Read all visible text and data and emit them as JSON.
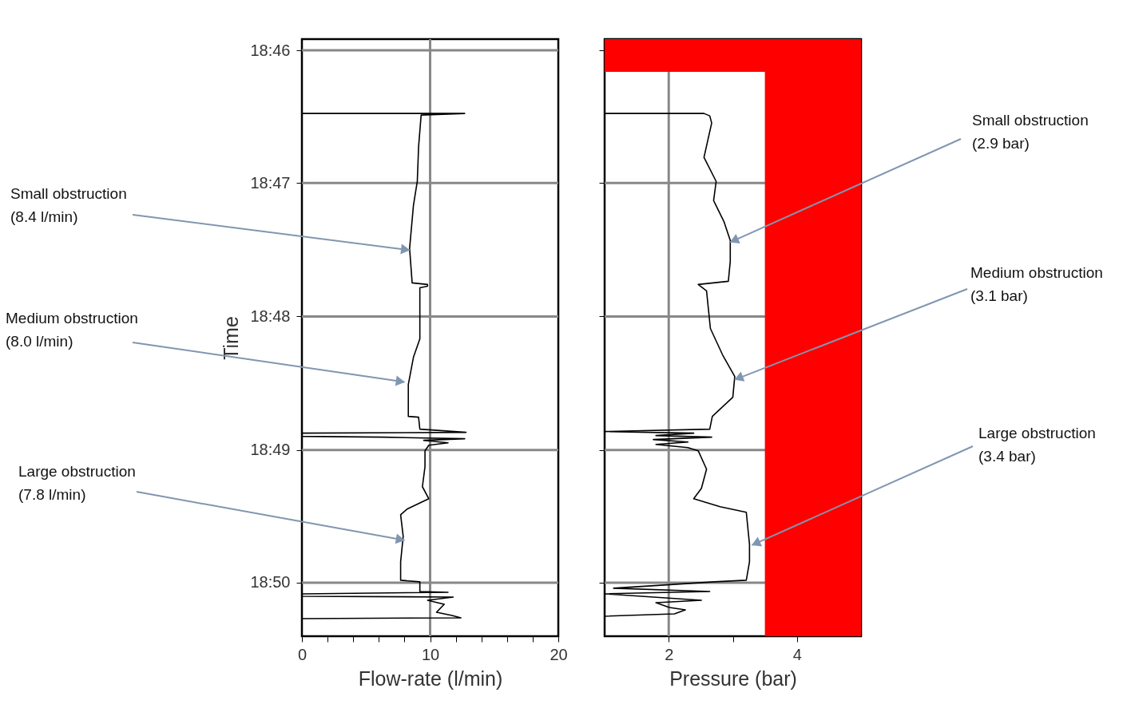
{
  "chart_data": [
    {
      "type": "line",
      "orientation": "horizontal",
      "xlabel": "Flow-rate (l/min)",
      "ylabel": "Time",
      "xlim": [
        0,
        20
      ],
      "xticks": [
        0,
        {
          "value": 2,
          "label": null
        },
        {
          "value": 4,
          "label": null
        },
        {
          "value": 6,
          "label": null
        },
        {
          "value": 8,
          "label": null
        },
        10,
        {
          "value": 12,
          "label": null
        },
        {
          "value": 14,
          "label": null
        },
        {
          "value": 16,
          "label": null
        },
        {
          "value": 18,
          "label": null
        },
        20
      ],
      "ylim": [
        18.84,
        18.7653
      ],
      "yticks": [
        {
          "value": 18.7667,
          "label": "18:46"
        },
        {
          "value": 18.7833,
          "label": "18:47"
        },
        {
          "value": 18.8,
          "label": "18:48"
        },
        {
          "value": 18.8167,
          "label": "18:49"
        },
        {
          "value": 18.8333,
          "label": "18:50"
        }
      ],
      "grid": true,
      "series": [
        {
          "color": "#000000",
          "x": [
            18.7746,
            18.7746,
            18.7748,
            18.7788,
            18.7831,
            18.7861,
            18.7915,
            18.7958,
            18.796,
            18.7962,
            18.7964,
            18.8028,
            18.8051,
            18.8085,
            18.8125,
            18.8126,
            18.8141,
            18.8145,
            18.8146,
            18.815,
            18.8151,
            18.8153,
            18.8155,
            18.8158,
            18.8161,
            18.8168,
            18.8188,
            18.8213,
            18.8228,
            18.8241,
            18.8248,
            18.8275,
            18.8307,
            18.833,
            18.8332,
            18.8344,
            18.8345,
            18.8347,
            18.835,
            18.8351,
            18.8355,
            18.836,
            18.837,
            18.8374,
            18.8377,
            18.8378
          ],
          "values": [
            0,
            12.7,
            9.3,
            9.1,
            9.0,
            8.7,
            8.4,
            8.6,
            9.8,
            9.8,
            9.2,
            9.2,
            8.7,
            8.3,
            8.3,
            9.1,
            9.2,
            12.8,
            0,
            0,
            6.3,
            12.7,
            9.5,
            11.4,
            9.9,
            9.6,
            9.6,
            9.4,
            9.9,
            8.2,
            7.7,
            7.9,
            7.7,
            7.7,
            9.2,
            9.2,
            11.4,
            0,
            0,
            11.8,
            9.8,
            11.1,
            10.5,
            11.7,
            12.4,
            0
          ]
        }
      ],
      "annotations": [
        {
          "text": "Small obstruction\n(8.4 l/min)",
          "x": 8.4,
          "y": 18.7917
        },
        {
          "text": "Medium obstruction\n(8.0 l/min)",
          "x": 8.0,
          "y": 18.8082
        },
        {
          "text": "Large obstruction\n(7.8 l/min)",
          "x": 8.0,
          "y": 18.828
        }
      ]
    },
    {
      "type": "line",
      "orientation": "horizontal",
      "xlabel": "Pressure (bar)",
      "xlim": [
        1,
        5
      ],
      "xticks": [
        2,
        {
          "value": 3,
          "label": null
        },
        4
      ],
      "ylim": [
        18.84,
        18.7653
      ],
      "yticks": [
        {
          "value": 18.7667,
          "label": null
        },
        {
          "value": 18.7833,
          "label": null
        },
        {
          "value": 18.8,
          "label": null
        },
        {
          "value": 18.8167,
          "label": null
        },
        {
          "value": 18.8333,
          "label": null
        }
      ],
      "tick_labels": "x",
      "grid": true,
      "bands": [
        {
          "axis": "x",
          "from": 3.5,
          "to": 5,
          "color": "#ff0000"
        },
        {
          "axis": "y",
          "from": 18.7653,
          "to": 18.7694,
          "color": "#ff0000"
        }
      ],
      "series": [
        {
          "color": "#000000",
          "x": [
            18.7746,
            18.7746,
            18.7749,
            18.7758,
            18.7801,
            18.7831,
            18.7855,
            18.7881,
            18.7905,
            18.7931,
            18.7956,
            18.796,
            18.7968,
            18.8015,
            18.8048,
            18.8075,
            18.8101,
            18.8125,
            18.8141,
            18.8144,
            18.8146,
            18.8149,
            18.8151,
            18.8154,
            18.8157,
            18.816,
            18.8164,
            18.8168,
            18.8191,
            18.8215,
            18.8228,
            18.8238,
            18.8245,
            18.8285,
            18.8307,
            18.833,
            18.8332,
            18.834,
            18.8344,
            18.8347,
            18.8355,
            18.8358,
            18.8364,
            18.8367,
            18.8372,
            18.8375
          ],
          "values": [
            1.0,
            2.55,
            2.64,
            2.67,
            2.55,
            2.74,
            2.7,
            2.86,
            2.96,
            2.96,
            2.93,
            2.46,
            2.59,
            2.65,
            2.84,
            3.03,
            3.0,
            2.68,
            2.64,
            1.0,
            2.39,
            1.8,
            2.67,
            1.76,
            2.3,
            1.8,
            2.3,
            2.46,
            2.59,
            2.51,
            2.39,
            2.8,
            3.21,
            3.26,
            3.26,
            3.21,
            2.71,
            1.14,
            2.64,
            1.0,
            2.51,
            1.8,
            2.01,
            2.26,
            2.09,
            1.0
          ]
        }
      ],
      "annotations": [
        {
          "text": "Small obstruction\n(2.9 bar)",
          "x": 2.96,
          "y": 18.7907
        },
        {
          "text": "Medium obstruction\n(3.1 bar)",
          "x": 3.03,
          "y": 18.8079
        },
        {
          "text": "Large obstruction\n(3.4 bar)",
          "x": 3.3,
          "y": 18.8286
        }
      ]
    }
  ]
}
